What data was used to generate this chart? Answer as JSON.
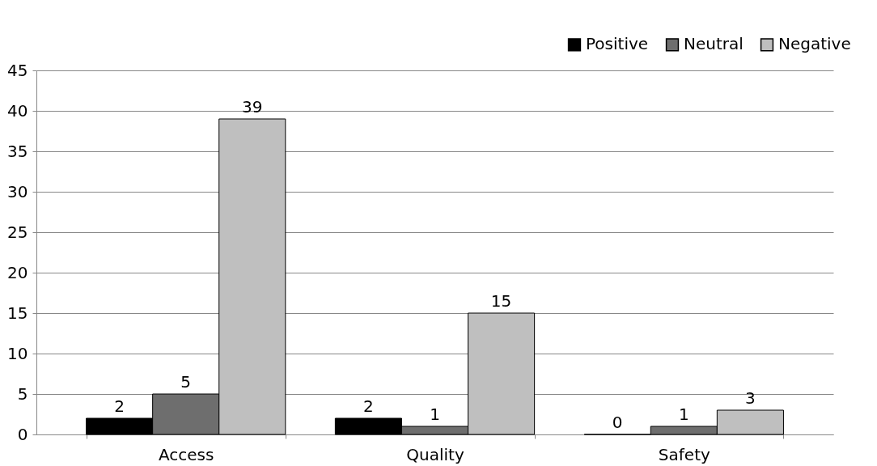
{
  "chart_data": {
    "type": "bar",
    "categories": [
      "Access",
      "Quality",
      "Safety"
    ],
    "series": [
      {
        "name": "Positive",
        "color": "#000000",
        "values": [
          2,
          2,
          0
        ]
      },
      {
        "name": "Neutral",
        "color": "#6e6e6e",
        "values": [
          5,
          1,
          1
        ]
      },
      {
        "name": "Negative",
        "color": "#bfbfbf",
        "values": [
          39,
          15,
          3
        ]
      }
    ],
    "ylim": [
      0,
      45
    ],
    "yticks": [
      0,
      5,
      10,
      15,
      20,
      25,
      30,
      35,
      40,
      45
    ],
    "grid": "y",
    "legend": "top right",
    "data_labels": true
  }
}
